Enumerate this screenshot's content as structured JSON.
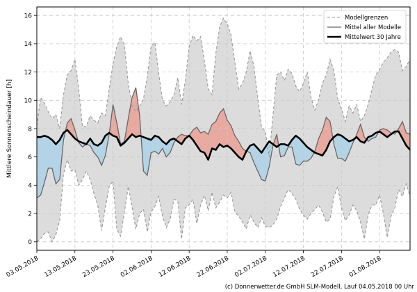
{
  "chart_data": {
    "type": "line",
    "title": "",
    "xlabel": "",
    "ylabel": "Mittlere Sonnenscheindauer [h]",
    "ylim": [
      -0.6,
      16.6
    ],
    "y_ticks": [
      0,
      2,
      4,
      6,
      8,
      10,
      12,
      14,
      16
    ],
    "x_tick_labels": [
      "03.05.2018",
      "13.05.2018",
      "23.05.2018",
      "02.06.2018",
      "12.06.2018",
      "22.06.2018",
      "02.07.2018",
      "12.07.2018",
      "22.07.2018",
      "01.08.2018"
    ],
    "x_tick_days": [
      0,
      10,
      20,
      30,
      40,
      50,
      60,
      70,
      80,
      90
    ],
    "x_range": [
      0,
      98
    ],
    "grid": true,
    "legend_position": "top-right",
    "series": [
      {
        "name": "Modellgrenzen",
        "style": "dashed",
        "color": "#999999",
        "upper": [
          8.2,
          10.2,
          9.8,
          9.2,
          8.7,
          9.0,
          8.0,
          10.4,
          11.8,
          12.1,
          12.9,
          10.8,
          8.1,
          8.2,
          8.9,
          8.6,
          8.4,
          9.1,
          8.9,
          10.8,
          12.6,
          13.8,
          14.5,
          13.9,
          11.2,
          9.6,
          9.2,
          9.6,
          10.1,
          11.7,
          13.8,
          14.1,
          11.9,
          10.0,
          9.6,
          9.9,
          10.4,
          11.6,
          9.7,
          11.4,
          13.8,
          14.6,
          14.2,
          14.5,
          12.8,
          10.8,
          10.4,
          13.3,
          15.2,
          15.8,
          15.4,
          14.6,
          12.7,
          10.8,
          11.2,
          12.0,
          13.5,
          12.4,
          10.2,
          8.1,
          7.8,
          6.0,
          8.9,
          11.8,
          12.0,
          11.4,
          12.2,
          11.9,
          11.0,
          10.6,
          11.2,
          12.0,
          10.2,
          9.3,
          10.1,
          11.2,
          11.8,
          12.9,
          12.1,
          10.1,
          9.4,
          8.5,
          9.6,
          9.1,
          9.7,
          8.5,
          8.9,
          9.7,
          10.8,
          11.8,
          12.2,
          12.7,
          13.0,
          13.4,
          13.6,
          13.4,
          12.1,
          12.4,
          12.9
        ],
        "lower": [
          0.0,
          0.2,
          0.6,
          0.7,
          0.0,
          0.5,
          1.5,
          4.8,
          5.8,
          5.0,
          5.1,
          4.0,
          4.4,
          5.0,
          4.4,
          3.4,
          2.6,
          0.8,
          2.4,
          3.9,
          4.3,
          0.9,
          0.4,
          2.1,
          3.9,
          2.5,
          0.9,
          2.0,
          2.3,
          0.7,
          2.1,
          2.5,
          3.2,
          1.8,
          1.0,
          1.6,
          3.0,
          2.9,
          0.2,
          2.4,
          2.6,
          3.0,
          1.3,
          2.6,
          3.3,
          2.2,
          3.5,
          2.4,
          2.8,
          3.3,
          3.1,
          3.5,
          2.1,
          1.8,
          1.4,
          0.9,
          1.9,
          1.4,
          1.0,
          1.7,
          1.1,
          1.0,
          1.2,
          1.6,
          2.5,
          3.1,
          3.7,
          3.4,
          3.0,
          2.3,
          1.9,
          1.6,
          2.0,
          2.3,
          2.6,
          2.1,
          1.4,
          1.6,
          3.2,
          3.9,
          2.4,
          1.5,
          1.9,
          2.6,
          2.2,
          1.4,
          0.2,
          1.9,
          2.6,
          2.6,
          3.3,
          2.0,
          0.3,
          1.8,
          2.4,
          3.7,
          3.2,
          4.1,
          3.2
        ]
      },
      {
        "name": "Mittel aller Modelle",
        "style": "solid",
        "color": "#666666",
        "values": [
          3.1,
          3.3,
          4.2,
          5.2,
          5.2,
          4.1,
          4.4,
          7.2,
          8.4,
          8.7,
          7.9,
          7.0,
          6.7,
          6.9,
          6.8,
          6.3,
          6.0,
          5.4,
          6.1,
          7.6,
          9.7,
          8.4,
          6.9,
          7.1,
          8.7,
          10.2,
          10.9,
          8.9,
          5.0,
          4.7,
          6.3,
          6.4,
          6.2,
          6.6,
          6.0,
          6.3,
          7.0,
          7.4,
          7.6,
          7.5,
          7.5,
          7.9,
          8.1,
          7.7,
          7.8,
          7.6,
          8.3,
          8.5,
          9.1,
          9.4,
          8.6,
          8.2,
          7.5,
          7.1,
          6.6,
          6.4,
          6.3,
          5.6,
          5.0,
          4.4,
          4.3,
          5.3,
          6.8,
          7.6,
          6.0,
          6.1,
          6.7,
          6.7,
          5.5,
          5.4,
          5.7,
          5.7,
          5.9,
          6.4,
          7.3,
          7.9,
          8.8,
          8.5,
          6.9,
          5.9,
          5.9,
          5.7,
          6.3,
          7.0,
          7.6,
          8.3,
          7.4,
          7.1,
          7.3,
          7.4,
          7.9,
          8.0,
          7.9,
          7.7,
          7.6,
          8.0,
          8.5,
          7.7,
          7.6
        ]
      },
      {
        "name": "Mittelwert 30 Jahre",
        "style": "solid",
        "color": "#000000",
        "values": [
          7.4,
          7.4,
          7.5,
          7.4,
          7.2,
          6.9,
          7.2,
          7.7,
          7.9,
          7.6,
          7.3,
          7.1,
          7.0,
          6.9,
          7.3,
          6.9,
          6.8,
          7.0,
          7.5,
          7.7,
          7.5,
          7.4,
          6.8,
          7.0,
          7.3,
          7.6,
          7.4,
          7.5,
          7.4,
          7.3,
          7.2,
          7.5,
          7.4,
          7.1,
          6.9,
          7.2,
          7.3,
          7.1,
          6.9,
          7.3,
          7.5,
          7.2,
          6.8,
          6.4,
          6.3,
          5.8,
          6.6,
          6.5,
          6.9,
          6.7,
          6.8,
          6.6,
          6.3,
          6.0,
          5.8,
          6.4,
          6.8,
          6.9,
          6.6,
          6.3,
          6.7,
          7.1,
          6.9,
          6.7,
          6.9,
          6.9,
          6.8,
          7.2,
          7.5,
          7.3,
          7.0,
          6.7,
          6.5,
          6.3,
          6.2,
          6.1,
          6.5,
          7.1,
          7.4,
          7.6,
          7.5,
          7.3,
          7.1,
          7.2,
          7.4,
          7.1,
          7.0,
          7.4,
          7.5,
          7.7,
          7.8,
          7.6,
          7.4,
          7.6,
          7.8,
          7.8,
          7.3,
          6.8,
          6.5
        ]
      }
    ],
    "fill_colors": {
      "above_mean": "#e8aaa0",
      "below_mean": "#b3d4e6",
      "range": "#dcdcdc"
    }
  },
  "copyright": "(c) Donnerwetter.de GmbH SLM-Modell, Lauf 04.05.2018 00 Uhr"
}
